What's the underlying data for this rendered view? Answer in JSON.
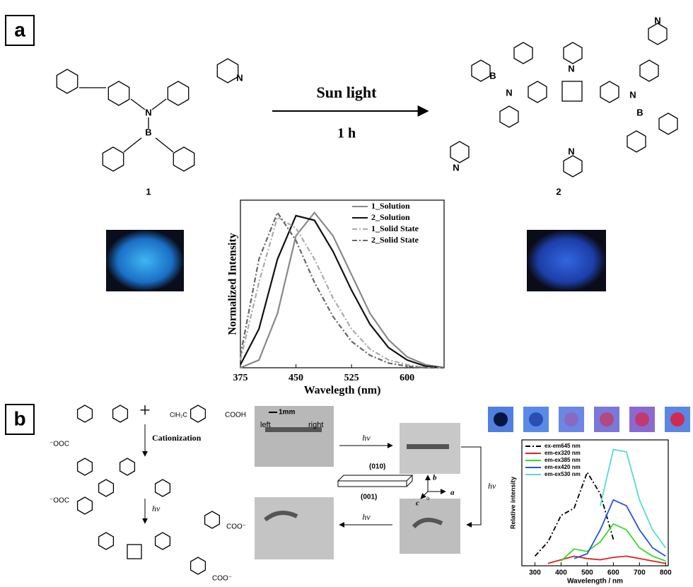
{
  "panel_a": {
    "label": "a",
    "condition_top": "Sun light",
    "condition_bottom": "1 h",
    "compound_labels": [
      "1",
      "2"
    ],
    "structure_1_atoms": [
      "N",
      "N",
      "B"
    ],
    "structure_2_atoms": [
      "N",
      "N",
      "N",
      "B",
      "N",
      "N",
      "N",
      "B"
    ]
  },
  "panel_b": {
    "label": "b",
    "reagent": "ClH₂C",
    "acid": "COOH",
    "step_1": "Cationization",
    "step_2": "hν",
    "anion_labels": [
      "⁻OOC",
      "⁻OOC",
      "COO⁻",
      "COO⁻"
    ],
    "scale_bar": "1mm",
    "crystal_ends": [
      "left",
      "right"
    ],
    "irradiation": [
      "hν",
      "hν",
      "hν"
    ],
    "faces": [
      "(010)",
      "(001)"
    ],
    "axes": [
      "b",
      "c",
      "o",
      "a"
    ]
  },
  "chart_data": [
    {
      "type": "line",
      "xlabel": "Wavelegth (nm)",
      "ylabel": "Normalized Intensity",
      "x": [
        375,
        400,
        425,
        450,
        475,
        500,
        525,
        550,
        575,
        600,
        625,
        650
      ],
      "xlim": [
        375,
        650
      ],
      "xticks": [
        375,
        450,
        525,
        600
      ],
      "ylim": [
        0,
        1.08
      ],
      "legend": "upper right",
      "series": [
        {
          "name": "1_Solution",
          "color": "#888888",
          "style": "solid",
          "values": [
            0,
            0.05,
            0.35,
            0.85,
            1.0,
            0.85,
            0.6,
            0.35,
            0.18,
            0.07,
            0.02,
            0
          ]
        },
        {
          "name": "2_Solution",
          "color": "#111111",
          "style": "solid",
          "values": [
            0.02,
            0.25,
            0.7,
            0.98,
            0.95,
            0.75,
            0.5,
            0.28,
            0.13,
            0.05,
            0.01,
            0
          ]
        },
        {
          "name": "1_Solid State",
          "color": "#aaaaaa",
          "style": "dashdot",
          "values": [
            0.05,
            0.55,
            0.97,
            0.9,
            0.7,
            0.45,
            0.25,
            0.12,
            0.05,
            0.02,
            0,
            0
          ]
        },
        {
          "name": "2_Solid State",
          "color": "#666666",
          "style": "dashdot",
          "values": [
            0.08,
            0.7,
            1.0,
            0.82,
            0.55,
            0.33,
            0.17,
            0.08,
            0.03,
            0.01,
            0,
            0
          ]
        }
      ]
    },
    {
      "type": "line",
      "xlabel": "Wavelength / nm",
      "ylabel": "Relative intensity",
      "x": [
        300,
        350,
        400,
        450,
        500,
        550,
        600,
        650,
        700,
        750,
        800
      ],
      "xlim": [
        250,
        810
      ],
      "xticks": [
        300,
        400,
        500,
        600,
        700,
        800
      ],
      "ylim": [
        0,
        1.05
      ],
      "legend": "upper left",
      "series": [
        {
          "name": "ex-em645 nm",
          "color": "#000000",
          "style": "dashdot",
          "values": [
            0.08,
            0.2,
            0.42,
            0.48,
            0.78,
            0.6,
            0.22,
            null,
            null,
            null,
            null
          ]
        },
        {
          "name": "em-ex320 nm",
          "color": "#e02020",
          "style": "solid",
          "values": [
            null,
            0.02,
            0.05,
            0.08,
            0.06,
            0.05,
            0.07,
            0.08,
            0.06,
            0.04,
            0.02
          ]
        },
        {
          "name": "em-ex385 nm",
          "color": "#33dd22",
          "style": "solid",
          "values": [
            null,
            null,
            0.04,
            0.14,
            0.12,
            0.2,
            0.35,
            0.3,
            0.15,
            0.08,
            0.04
          ]
        },
        {
          "name": "em-ex420 nm",
          "color": "#2255dd",
          "style": "solid",
          "values": [
            null,
            null,
            null,
            0.06,
            0.1,
            0.3,
            0.55,
            0.5,
            0.3,
            0.15,
            0.08
          ]
        },
        {
          "name": "em-ex530 nm",
          "color": "#55ddcc",
          "style": "solid",
          "values": [
            null,
            null,
            null,
            null,
            null,
            0.5,
            0.97,
            0.95,
            0.55,
            0.3,
            0.15
          ]
        }
      ]
    }
  ]
}
